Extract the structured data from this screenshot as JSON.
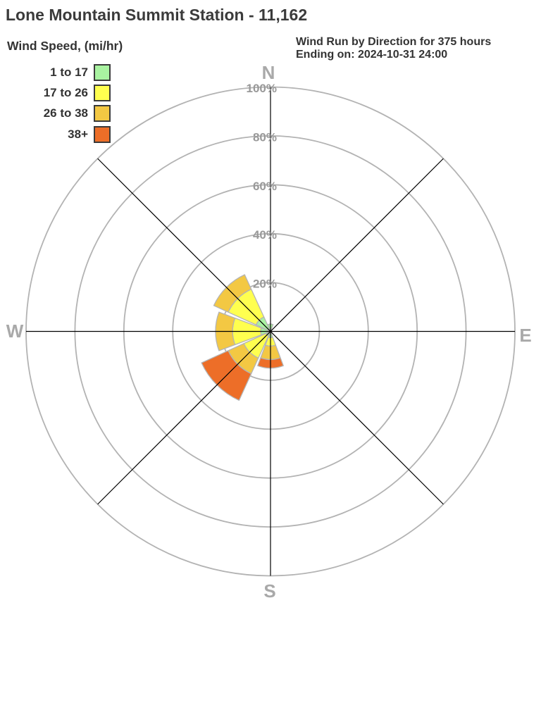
{
  "title": "Lone Mountain Summit Station - 11,162",
  "annotation": {
    "line1": "Wind Run by Direction for 375 hours",
    "line2": "Ending on: 2024-10-31 24:00"
  },
  "legend": {
    "title": "Wind Speed, (mi/hr)",
    "items": [
      {
        "label": "1 to 17",
        "color": "#a9f3a1"
      },
      {
        "label": "17 to 26",
        "color": "#ffff4f"
      },
      {
        "label": "26 to 38",
        "color": "#f3c843"
      },
      {
        "label": "38+",
        "color": "#ed6e28"
      }
    ]
  },
  "chart_data": {
    "type": "windrose",
    "title": "Wind Run by Direction",
    "units": "percent of wind run",
    "speed_bins": [
      "1 to 17",
      "17 to 26",
      "26 to 38",
      "38+"
    ],
    "ring_values": [
      20,
      40,
      60,
      80,
      100
    ],
    "ring_labels": [
      "20%",
      "40%",
      "60%",
      "80%",
      "100%"
    ],
    "compass_labels": {
      "north": "N",
      "east": "E",
      "south": "S",
      "west": "W"
    },
    "petals": [
      {
        "direction": "N",
        "angle": 0,
        "segments": [
          {
            "bin": "1 to 17",
            "to_percent": 3
          }
        ]
      },
      {
        "direction": "S",
        "angle": 180,
        "segments": [
          {
            "bin": "1 to 17",
            "to_percent": 2.5
          },
          {
            "bin": "17 to 26",
            "to_percent": 6
          },
          {
            "bin": "26 to 38",
            "to_percent": 11.5
          },
          {
            "bin": "38+",
            "to_percent": 15
          }
        ]
      },
      {
        "direction": "SW",
        "angle": 225,
        "segments": [
          {
            "bin": "1 to 17",
            "to_percent": 2
          },
          {
            "bin": "17 to 26",
            "to_percent": 12
          },
          {
            "bin": "26 to 38",
            "to_percent": 19
          },
          {
            "bin": "38+",
            "to_percent": 31
          }
        ]
      },
      {
        "direction": "W",
        "angle": 270,
        "segments": [
          {
            "bin": "1 to 17",
            "to_percent": 4
          },
          {
            "bin": "17 to 26",
            "to_percent": 15.5
          },
          {
            "bin": "26 to 38",
            "to_percent": 22.5
          }
        ]
      },
      {
        "direction": "NW",
        "angle": 315,
        "segments": [
          {
            "bin": "1 to 17",
            "to_percent": 6.5
          },
          {
            "bin": "17 to 26",
            "to_percent": 19
          },
          {
            "bin": "26 to 38",
            "to_percent": 25.5
          }
        ]
      }
    ],
    "colors": {
      "grid": "#b3b3b3",
      "axis": "#000000",
      "ring_label": "#999999",
      "compass_label": "#a9a9a9",
      "petal_outline": "#b4b4b4"
    }
  }
}
